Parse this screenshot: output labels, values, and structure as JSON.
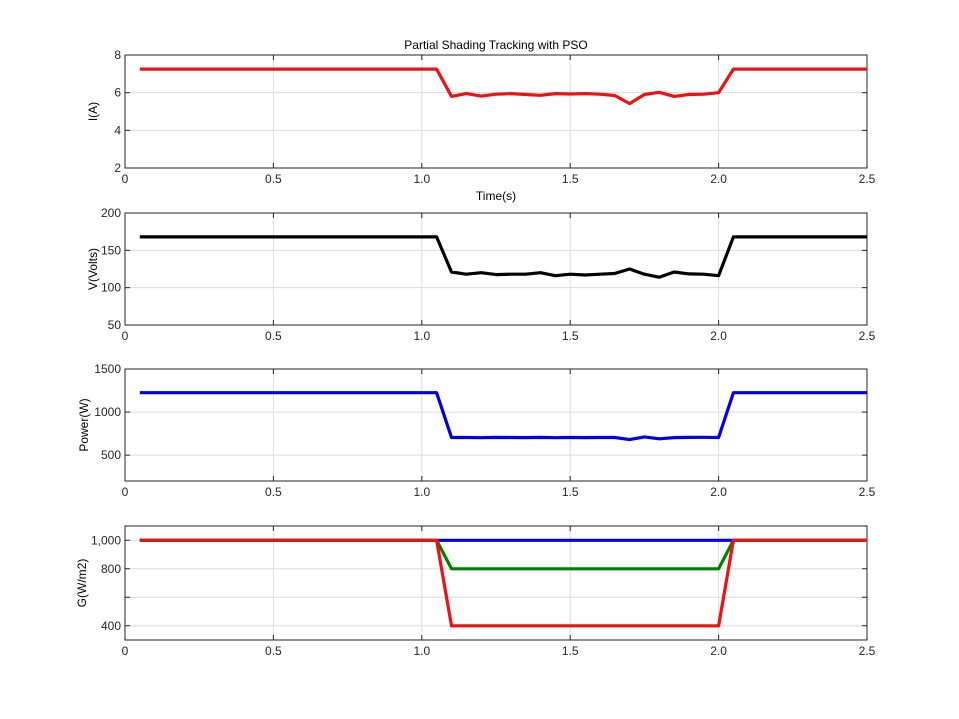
{
  "figure_title": "Partial  Shading Tracking with PSO",
  "chart_data": [
    {
      "type": "line",
      "id": "current",
      "title": "Partial  Shading Tracking with PSO",
      "xlabel": "Time(s)",
      "ylabel": "I(A)",
      "xlim": [
        0,
        2.5
      ],
      "ylim": [
        2,
        8
      ],
      "x_ticks": [
        0,
        0.5,
        1.0,
        1.5,
        2.0,
        2.5
      ],
      "x_tick_labels": [
        "0",
        "0.5",
        "1.0",
        "1.5",
        "2.0",
        "2.5"
      ],
      "y_ticks": [
        2,
        4,
        6,
        8
      ],
      "y_tick_labels": [
        "2",
        "4",
        "6",
        "8"
      ],
      "grid": true,
      "series": [
        {
          "color": "#ee1111",
          "x": [
            0.05,
            1.05,
            1.1,
            1.15,
            1.2,
            1.25,
            1.3,
            1.35,
            1.4,
            1.45,
            1.5,
            1.55,
            1.6,
            1.65,
            1.7,
            1.75,
            1.8,
            1.85,
            1.9,
            1.95,
            2.0,
            2.05,
            2.5
          ],
          "y": [
            7.25,
            7.25,
            5.8,
            5.95,
            5.82,
            5.92,
            5.95,
            5.9,
            5.86,
            5.95,
            5.93,
            5.95,
            5.92,
            5.85,
            5.42,
            5.9,
            6.02,
            5.8,
            5.9,
            5.92,
            6.0,
            7.25,
            7.25
          ]
        }
      ]
    },
    {
      "type": "line",
      "id": "voltage",
      "xlabel": "",
      "ylabel": "V(Volts)",
      "xlim": [
        0,
        2.5
      ],
      "ylim": [
        50,
        200
      ],
      "x_ticks": [
        0,
        0.5,
        1.0,
        1.5,
        2.0,
        2.5
      ],
      "x_tick_labels": [
        "0",
        "0.5",
        "1.0",
        "1.5",
        "2.0",
        "2.5"
      ],
      "y_ticks": [
        50,
        100,
        150,
        200
      ],
      "y_tick_labels": [
        "50",
        "100",
        "150",
        "200"
      ],
      "grid": true,
      "series": [
        {
          "color": "#000000",
          "x": [
            0.05,
            1.05,
            1.1,
            1.15,
            1.2,
            1.25,
            1.3,
            1.35,
            1.4,
            1.45,
            1.5,
            1.55,
            1.6,
            1.65,
            1.7,
            1.75,
            1.8,
            1.85,
            1.9,
            1.95,
            2.0,
            2.05,
            2.5
          ],
          "y": [
            168,
            168,
            121,
            118,
            120,
            117.5,
            118,
            118,
            120,
            116,
            118,
            117,
            118,
            119,
            125,
            118,
            114,
            121,
            118.5,
            118,
            116,
            168,
            168
          ]
        }
      ]
    },
    {
      "type": "line",
      "id": "power",
      "xlabel": "",
      "ylabel": "Power(W)",
      "xlim": [
        0,
        2.5
      ],
      "ylim": [
        200,
        1500
      ],
      "x_ticks": [
        0,
        0.5,
        1.0,
        1.5,
        2.0,
        2.5
      ],
      "x_tick_labels": [
        "0",
        "0.5",
        "1.0",
        "1.5",
        "2.0",
        "2.5"
      ],
      "y_ticks": [
        500,
        1000,
        1500
      ],
      "y_tick_labels": [
        "500",
        "1000",
        "1500"
      ],
      "grid": true,
      "series": [
        {
          "color": "#0000ee",
          "x": [
            0.05,
            1.05,
            1.1,
            1.15,
            1.2,
            1.25,
            1.3,
            1.35,
            1.4,
            1.45,
            1.5,
            1.55,
            1.6,
            1.65,
            1.7,
            1.75,
            1.8,
            1.85,
            1.9,
            1.95,
            2.0,
            2.05,
            2.5
          ],
          "y": [
            1225,
            1225,
            705,
            705,
            703,
            706,
            705,
            704,
            706,
            703,
            705,
            704,
            705,
            705,
            680,
            712,
            690,
            704,
            706,
            707,
            705,
            1225,
            1225
          ]
        }
      ]
    },
    {
      "type": "line",
      "id": "irradiance",
      "xlabel": "",
      "ylabel": "G(W/m2)",
      "xlim": [
        0,
        2.5
      ],
      "ylim": [
        300,
        1100
      ],
      "x_ticks": [
        0,
        0.5,
        1.0,
        1.5,
        2.0,
        2.5
      ],
      "x_tick_labels": [
        "0",
        "0.5",
        "1.0",
        "1.5",
        "2.0",
        "2.5"
      ],
      "y_ticks": [
        400,
        600,
        800,
        1000
      ],
      "y_tick_labels": [
        "400",
        "",
        "800",
        "1,000"
      ],
      "grid": true,
      "series": [
        {
          "color": "#0000ee",
          "x": [
            0.05,
            2.5
          ],
          "y": [
            1000,
            1000
          ]
        },
        {
          "color": "#008000",
          "x": [
            0.05,
            1.05,
            1.1,
            2.0,
            2.05,
            2.5
          ],
          "y": [
            1000,
            1000,
            800,
            800,
            1000,
            1000
          ]
        },
        {
          "color": "#ee1111",
          "x": [
            0.05,
            1.05,
            1.1,
            2.0,
            2.05,
            2.5
          ],
          "y": [
            1000,
            1000,
            400,
            400,
            1000,
            1000
          ]
        }
      ]
    }
  ]
}
